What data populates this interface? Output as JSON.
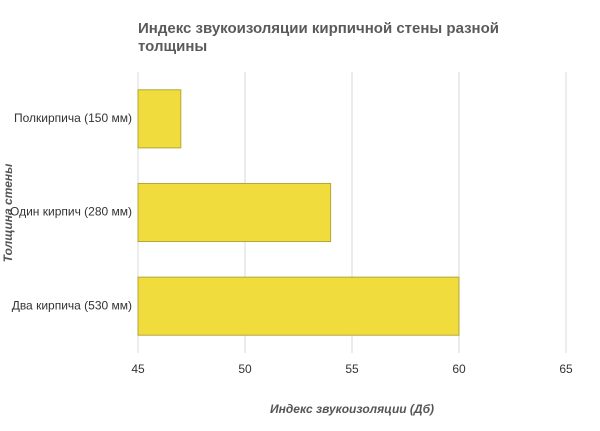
{
  "chart_data": {
    "type": "bar",
    "orientation": "horizontal",
    "title": "Индекс звукоизоляции кирпичной стены разной толщины",
    "x_label": "Индекс звукоизоляции (Дб)",
    "y_label": "Толщина стены",
    "categories": [
      "Полкирпича (150 мм)",
      "Один кирпич (280 мм)",
      "Два кирпича (530 мм)"
    ],
    "values": [
      47,
      54,
      60
    ],
    "color": "#f0dc3c",
    "xlim": [
      45,
      65
    ],
    "xticks": [
      45,
      50,
      55,
      60,
      65
    ],
    "grid": true
  }
}
